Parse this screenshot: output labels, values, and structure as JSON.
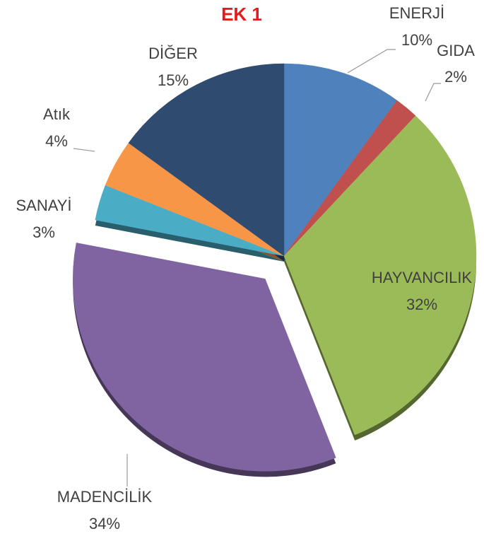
{
  "chart_data": {
    "type": "pie",
    "title": "EK 1",
    "categories": [
      "ENERJİ",
      "GIDA",
      "HAYVANCILIK",
      "MADENCİLİK",
      "SANAYİ",
      "Atık",
      "DİĞER"
    ],
    "values": [
      10,
      2,
      32,
      34,
      3,
      4,
      15
    ],
    "value_labels": [
      "10%",
      "2%",
      "32%",
      "34%",
      "3%",
      "4%",
      "15%"
    ],
    "colors": [
      "#4f81bd",
      "#c0504d",
      "#9bbb59",
      "#8064a2",
      "#4bacc6",
      "#f79646",
      "#2f4b70"
    ],
    "exploded": "MADENCİLİK"
  }
}
